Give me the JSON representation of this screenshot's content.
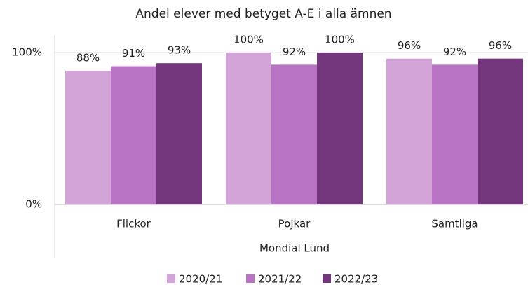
{
  "chart_data": {
    "type": "bar",
    "title": "Andel elever med betyget A-E i alla ämnen",
    "xlabel": "Mondial Lund",
    "categories": [
      "Flickor",
      "Pojkar",
      "Samtliga"
    ],
    "series": [
      {
        "name": "2020/21",
        "color": "#d3a4d7",
        "values": [
          88,
          100,
          96
        ],
        "value_labels": [
          "88%",
          "100%",
          "96%"
        ]
      },
      {
        "name": "2021/22",
        "color": "#b973c4",
        "values": [
          91,
          92,
          92
        ],
        "value_labels": [
          "91%",
          "92%",
          "92%"
        ]
      },
      {
        "name": "2022/23",
        "color": "#73357b",
        "values": [
          93,
          100,
          96
        ],
        "value_labels": [
          "93%",
          "100%",
          "96%"
        ]
      }
    ],
    "ylim": [
      0,
      100
    ],
    "yticks": [
      {
        "value": 0,
        "label": "0%"
      },
      {
        "value": 100,
        "label": "100%"
      }
    ],
    "grid": true,
    "legend": "bottom"
  }
}
